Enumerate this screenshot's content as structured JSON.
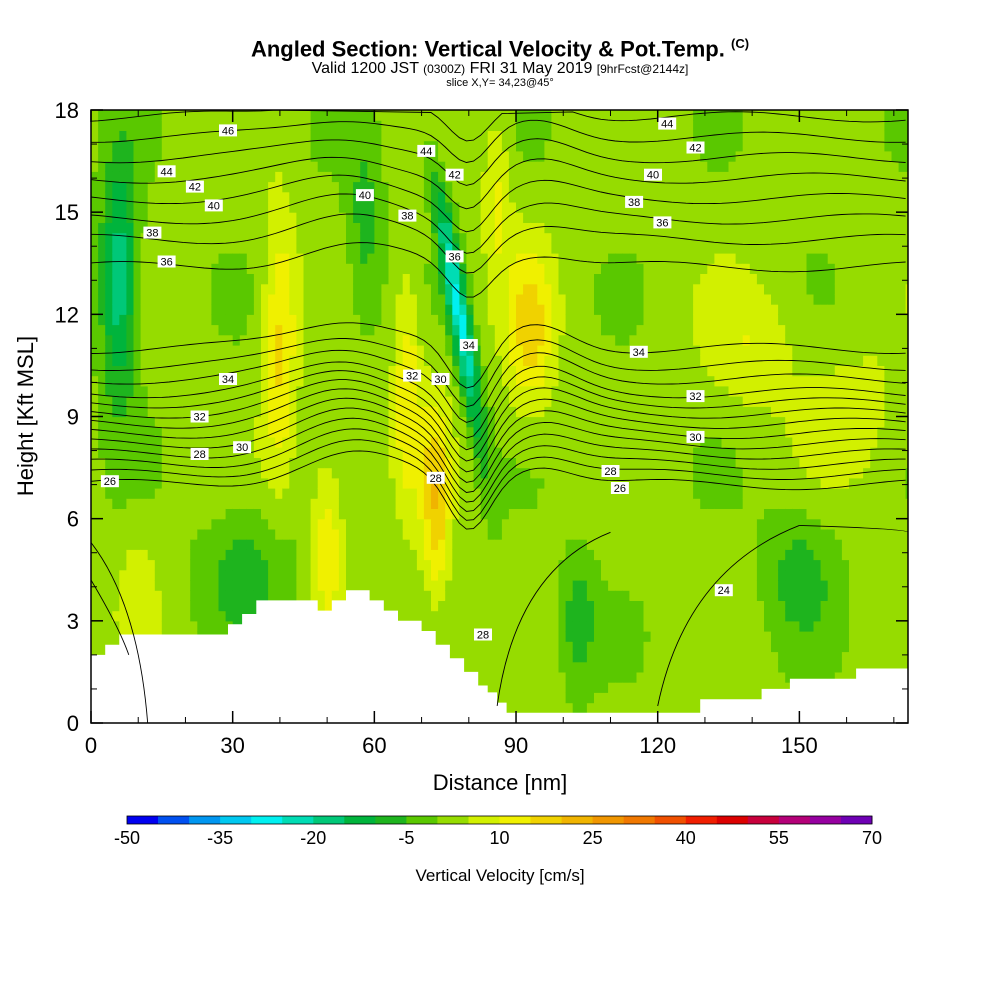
{
  "title": {
    "main": "Angled Section: Vertical Velocity & Pot.Temp.",
    "main_unit": "(C)",
    "valid_prefix": "Valid 1200 JST",
    "valid_utc": "(0300Z)",
    "valid_date": "FRI 31 May 2019",
    "forecast": "[9hrFcst@2144z]",
    "slice": "slice X,Y= 34,23@45°"
  },
  "chart_data": {
    "type": "heatmap",
    "xlabel": "Distance [nm]",
    "ylabel": "Height [Kft MSL]",
    "xlim": [
      0,
      173
    ],
    "ylim": [
      0,
      18
    ],
    "x_ticks": [
      0,
      30,
      60,
      90,
      120,
      150
    ],
    "y_ticks": [
      0,
      3,
      6,
      9,
      12,
      15,
      18
    ],
    "colorbar": {
      "label": "Vertical Velocity [cm/s]",
      "min": -50,
      "step": 5,
      "tick_labels": [
        -50,
        -35,
        -20,
        -5,
        10,
        25,
        40,
        55,
        70
      ],
      "colors": [
        "#0000f0",
        "#0050f0",
        "#0096f0",
        "#00c8f0",
        "#00f0f0",
        "#00dcb4",
        "#00c878",
        "#00b43c",
        "#1eb41e",
        "#5ac800",
        "#96dc00",
        "#d2f000",
        "#f0f000",
        "#f0d200",
        "#f0b400",
        "#f09600",
        "#f07800",
        "#f05000",
        "#f01e00",
        "#dc0000",
        "#c8003c",
        "#b40078",
        "#9600a0",
        "#6e00b4"
      ]
    },
    "theta_labels": [
      {
        "text": "46",
        "x": 29,
        "y": 17.4
      },
      {
        "text": "44",
        "x": 16,
        "y": 16.2
      },
      {
        "text": "42",
        "x": 22,
        "y": 15.75
      },
      {
        "text": "40",
        "x": 26,
        "y": 15.2
      },
      {
        "text": "38",
        "x": 13,
        "y": 14.4
      },
      {
        "text": "36",
        "x": 16,
        "y": 13.55
      },
      {
        "text": "34",
        "x": 29,
        "y": 10.1
      },
      {
        "text": "32",
        "x": 23,
        "y": 9.0
      },
      {
        "text": "30",
        "x": 32,
        "y": 8.1
      },
      {
        "text": "28",
        "x": 23,
        "y": 7.9
      },
      {
        "text": "26",
        "x": 4,
        "y": 7.1
      },
      {
        "text": "44",
        "x": 71,
        "y": 16.8
      },
      {
        "text": "42",
        "x": 77,
        "y": 16.1
      },
      {
        "text": "40",
        "x": 58,
        "y": 15.5
      },
      {
        "text": "38",
        "x": 67,
        "y": 14.9
      },
      {
        "text": "36",
        "x": 77,
        "y": 13.7
      },
      {
        "text": "34",
        "x": 80,
        "y": 11.1
      },
      {
        "text": "32",
        "x": 68,
        "y": 10.2
      },
      {
        "text": "30",
        "x": 74,
        "y": 10.1
      },
      {
        "text": "28",
        "x": 73,
        "y": 7.2
      },
      {
        "text": "28",
        "x": 83,
        "y": 2.6
      },
      {
        "text": "44",
        "x": 122,
        "y": 17.6
      },
      {
        "text": "42",
        "x": 128,
        "y": 16.9
      },
      {
        "text": "40",
        "x": 119,
        "y": 16.1
      },
      {
        "text": "38",
        "x": 115,
        "y": 15.3
      },
      {
        "text": "36",
        "x": 121,
        "y": 14.7
      },
      {
        "text": "34",
        "x": 116,
        "y": 10.9
      },
      {
        "text": "32",
        "x": 128,
        "y": 9.6
      },
      {
        "text": "30",
        "x": 128,
        "y": 8.4
      },
      {
        "text": "28",
        "x": 110,
        "y": 7.4
      },
      {
        "text": "26",
        "x": 112,
        "y": 6.9
      },
      {
        "text": "24",
        "x": 134,
        "y": 3.9
      }
    ]
  }
}
